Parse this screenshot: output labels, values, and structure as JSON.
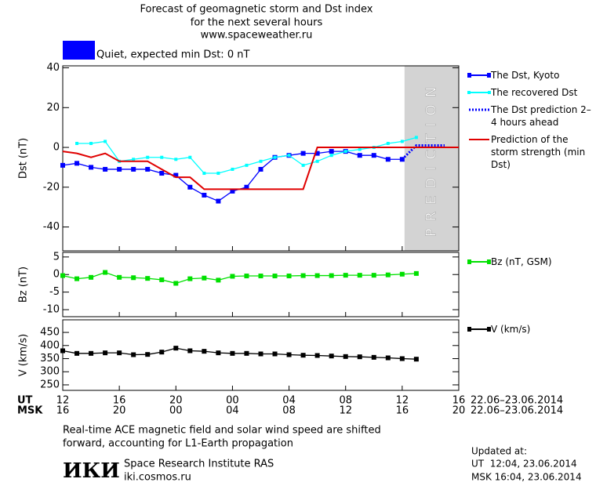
{
  "header": {
    "title_lines": [
      "Forecast of geomagnetic storm and Dst index",
      "for the next several hours",
      "www.spaceweather.ru"
    ],
    "status": "Quiet, expected min Dst: 0 nT",
    "status_color": "#0000ff"
  },
  "chart_data": [
    {
      "type": "line",
      "ylabel": "Dst (nT)",
      "xlim": [
        0,
        28
      ],
      "ylim": [
        -52,
        41
      ],
      "yticks": [
        -40,
        -20,
        0,
        20,
        40
      ],
      "annotation": "PREDICTION",
      "prediction_start": 24,
      "series": [
        {
          "name": "The Dst, Kyoto",
          "color": "#0000ff",
          "marker": "square",
          "x": [
            0,
            1,
            2,
            3,
            4,
            5,
            6,
            7,
            8,
            9,
            10,
            11,
            12,
            13,
            14,
            15,
            16,
            17,
            18,
            19,
            20,
            21,
            22,
            23,
            24
          ],
          "values": [
            -9,
            -8,
            -10,
            -11,
            -11,
            -11,
            -11,
            -13,
            -14,
            -20,
            -24,
            -27,
            -22,
            -20,
            -11,
            -5,
            -4,
            -3,
            -3,
            -2,
            -2,
            -4,
            -4,
            -6,
            -6
          ]
        },
        {
          "name": "The recovered Dst",
          "color": "#00ffff",
          "marker": "small-square",
          "x": [
            1,
            2,
            3,
            4,
            5,
            6,
            7,
            8,
            9,
            10,
            11,
            12,
            13,
            14,
            15,
            16,
            17,
            18,
            19,
            20,
            21,
            22,
            23,
            24,
            25
          ],
          "values": [
            2,
            2,
            3,
            -7,
            -6,
            -5,
            -5,
            -6,
            -5,
            -13,
            -13,
            -11,
            -9,
            -7,
            -5,
            -4,
            -9,
            -7,
            -4,
            -2,
            -1,
            0,
            2,
            3,
            5
          ]
        },
        {
          "name": "The Dst prediction 2–4 hours ahead",
          "color": "#0000ff",
          "marker": "none",
          "dash": "dotted",
          "x": [
            24,
            25,
            26,
            27
          ],
          "values": [
            -6,
            1,
            1,
            1
          ]
        },
        {
          "name": "Prediction of the storm strength (min Dst)",
          "color": "#e00000",
          "marker": "none",
          "x": [
            0,
            1,
            2,
            3,
            4,
            5,
            6,
            7,
            8,
            9,
            10,
            17,
            18,
            28
          ],
          "values": [
            -2,
            -3,
            -5,
            -3,
            -7,
            -7,
            -7,
            -11,
            -15,
            -15,
            -21,
            -21,
            0,
            0
          ]
        }
      ]
    },
    {
      "type": "line",
      "ylabel": "Bz (nT)",
      "xlim": [
        0,
        28
      ],
      "ylim": [
        -12,
        6.3
      ],
      "yticks": [
        -10,
        -5,
        0,
        5
      ],
      "series": [
        {
          "name": "Bz (nT, GSM)",
          "color": "#00e000",
          "marker": "square",
          "x": [
            0,
            1,
            2,
            3,
            4,
            5,
            6,
            7,
            8,
            9,
            10,
            11,
            12,
            13,
            14,
            15,
            16,
            17,
            18,
            19,
            20,
            21,
            22,
            23,
            24,
            25
          ],
          "values": [
            -0.3,
            -1.2,
            -0.8,
            0.6,
            -0.8,
            -0.9,
            -1.1,
            -1.5,
            -2.5,
            -1.2,
            -1.0,
            -1.6,
            -0.5,
            -0.4,
            -0.4,
            -0.4,
            -0.4,
            -0.3,
            -0.3,
            -0.3,
            -0.2,
            -0.2,
            -0.2,
            -0.1,
            0.1,
            0.3
          ]
        }
      ]
    },
    {
      "type": "line",
      "ylabel": "V (km/s)",
      "xlim": [
        0,
        28
      ],
      "ylim": [
        229,
        498
      ],
      "yticks": [
        250,
        300,
        350,
        400,
        450
      ],
      "series": [
        {
          "name": "V (km/s)",
          "color": "#000000",
          "marker": "square",
          "x": [
            0,
            1,
            2,
            3,
            4,
            5,
            6,
            7,
            8,
            9,
            10,
            11,
            12,
            13,
            14,
            15,
            16,
            17,
            18,
            19,
            20,
            21,
            22,
            23,
            24,
            25
          ],
          "values": [
            380,
            370,
            370,
            372,
            372,
            365,
            366,
            375,
            390,
            380,
            378,
            372,
            370,
            370,
            368,
            368,
            365,
            363,
            362,
            360,
            358,
            357,
            355,
            353,
            350,
            348
          ]
        }
      ],
      "ut_label": "UT",
      "msk_label": "MSK",
      "date_range": "22.06–23.06.2014",
      "xticks": [
        {
          "value": 0,
          "label": "12"
        },
        {
          "value": 4,
          "label": "16"
        },
        {
          "value": 8,
          "label": "20"
        },
        {
          "value": 12,
          "label": "00"
        },
        {
          "value": 16,
          "label": "04"
        },
        {
          "value": 20,
          "label": "08"
        },
        {
          "value": 24,
          "label": "12"
        },
        {
          "value": 28,
          "label": "16"
        }
      ],
      "xticks_msk": [
        {
          "value": 0,
          "label": "16"
        },
        {
          "value": 4,
          "label": "20"
        },
        {
          "value": 8,
          "label": "00"
        },
        {
          "value": 12,
          "label": "04"
        },
        {
          "value": 16,
          "label": "08"
        },
        {
          "value": 20,
          "label": "12"
        },
        {
          "value": 24,
          "label": "16"
        },
        {
          "value": 28,
          "label": "20"
        }
      ]
    }
  ],
  "footer": {
    "note_lines": [
      "Real-time ACE magnetic field and solar wind speed are shifted",
      "forward, accounting for L1-Earth propagation"
    ],
    "logo": "ИКИ",
    "institute": "Space Research Institute RAS",
    "url": "iki.cosmos.ru",
    "updated_lines": [
      "Updated at:",
      "UT  12:04, 23.06.2014",
      "MSK 16:04, 23.06.2014"
    ]
  }
}
